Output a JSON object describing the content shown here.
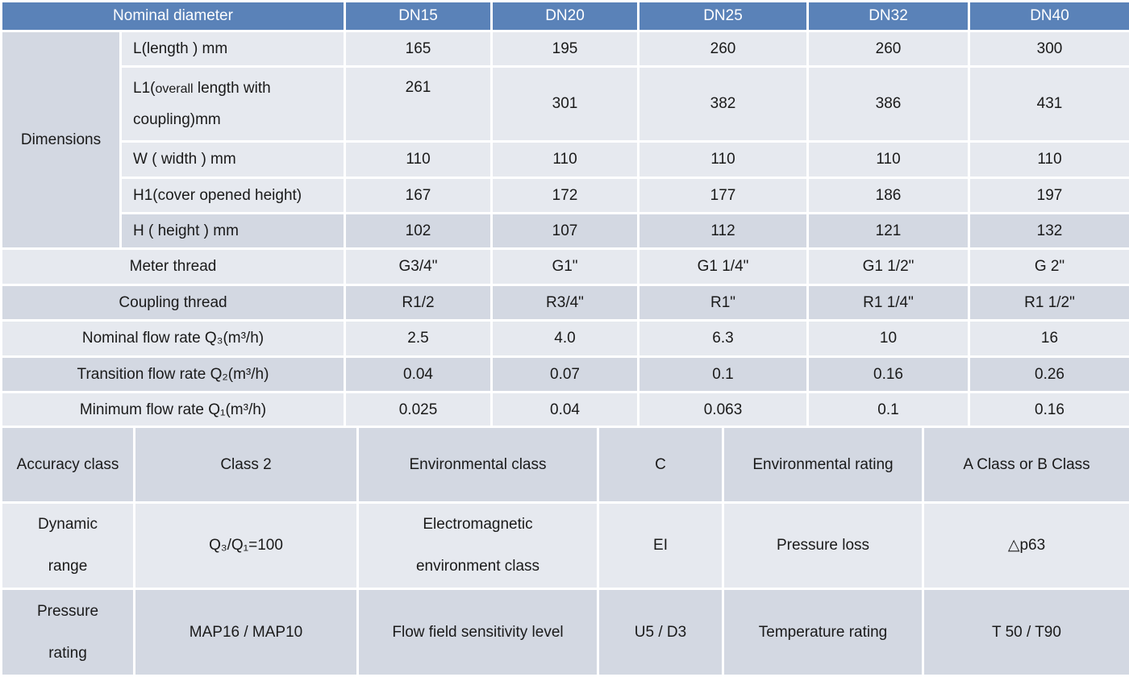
{
  "header": {
    "nominal_label": "Nominal diameter",
    "sizes": [
      "DN15",
      "DN20",
      "DN25",
      "DN32",
      "DN40"
    ]
  },
  "dimensions": {
    "group_label": "Dimensions",
    "rows": [
      {
        "label": "L(length ) mm",
        "values": [
          "165",
          "195",
          "260",
          "260",
          "300"
        ]
      },
      {
        "label_line1": "L1(",
        "label_small": "overall",
        "label_rest": " length with",
        "label_line2": "coupling)mm",
        "values": [
          "261",
          "301",
          "382",
          "386",
          "431"
        ]
      },
      {
        "label": "W ( width ) mm",
        "values": [
          "110",
          "110",
          "110",
          "110",
          "110"
        ]
      },
      {
        "label": "H1(cover opened height)",
        "values": [
          "167",
          "172",
          "177",
          "186",
          "197"
        ]
      },
      {
        "label": "H ( height ) mm",
        "values": [
          "102",
          "107",
          "112",
          "121",
          "132"
        ]
      }
    ]
  },
  "specs": [
    {
      "label": "Meter thread",
      "values": [
        "G3/4\"",
        "G1\"",
        "G1 1/4\"",
        "G1 1/2\"",
        "G 2\""
      ]
    },
    {
      "label": "Coupling thread",
      "values": [
        "R1/2",
        "R3/4\"",
        "R1\"",
        "R1 1/4\"",
        "R1 1/2\""
      ]
    },
    {
      "label": "Nominal flow rate Q₃(m³/h)",
      "values": [
        "2.5",
        "4.0",
        "6.3",
        "10",
        "16"
      ]
    },
    {
      "label": "Transition flow rate Q₂(m³/h)",
      "values": [
        "0.04",
        "0.07",
        "0.1",
        "0.16",
        "0.26"
      ]
    },
    {
      "label": "Minimum flow rate Q₁(m³/h)",
      "values": [
        "0.025",
        "0.04",
        "0.063",
        "0.1",
        "0.16"
      ]
    }
  ],
  "properties": [
    [
      "Accuracy class",
      "Class 2",
      "Environmental class",
      "C",
      "Environmental rating",
      "A Class or B Class"
    ],
    [
      [
        "Dynamic",
        "range"
      ],
      "Q₃/Q₁=100",
      [
        "Electromagnetic",
        "environment class"
      ],
      "EI",
      "Pressure loss",
      "△p63"
    ],
    [
      [
        "Pressure",
        "rating"
      ],
      "MAP16 / MAP10",
      "Flow field sensitivity level",
      "U5 / D3",
      "Temperature rating",
      "T 50 / T90"
    ]
  ]
}
